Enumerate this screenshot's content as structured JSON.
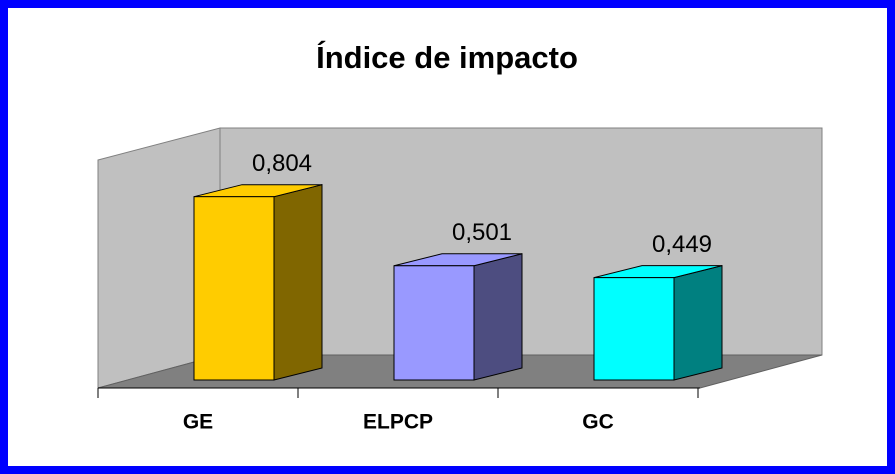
{
  "chart_data": {
    "type": "bar3d",
    "title": "Índice de impacto",
    "categories": [
      "GE",
      "ELPCP",
      "GC"
    ],
    "values": [
      0.804,
      0.501,
      0.449
    ],
    "value_labels": [
      "0,804",
      "0,501",
      "0,449"
    ],
    "colors": [
      "#ffcc00",
      "#9999ff",
      "#00ffff"
    ],
    "side_colors": [
      "#806600",
      "#4d4d80",
      "#008080"
    ],
    "ylim": [
      0,
      1
    ]
  }
}
